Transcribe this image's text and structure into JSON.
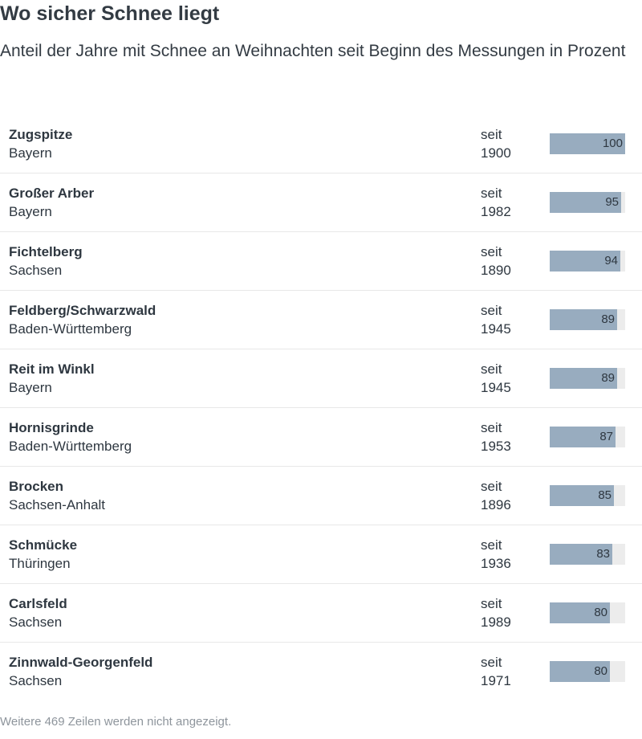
{
  "header": {
    "title": "Wo sicher Schnee liegt",
    "subtitle": "Anteil der Jahre mit Schnee an Weihnachten seit Beginn des Messungen in Prozent"
  },
  "colors": {
    "bar": "#98acbf",
    "track": "#ececec"
  },
  "chart_data": {
    "type": "table",
    "xlim": [
      0,
      100
    ],
    "rows": [
      {
        "station": "Zugspitze",
        "state": "Bayern",
        "since_prefix": "seit",
        "since_year": "1900",
        "value": 100
      },
      {
        "station": "Großer Arber",
        "state": "Bayern",
        "since_prefix": "seit",
        "since_year": "1982",
        "value": 95
      },
      {
        "station": "Fichtelberg",
        "state": "Sachsen",
        "since_prefix": "seit",
        "since_year": "1890",
        "value": 94
      },
      {
        "station": "Feldberg/Schwarzwald",
        "state": "Baden-Württemberg",
        "since_prefix": "seit",
        "since_year": "1945",
        "value": 89
      },
      {
        "station": "Reit im Winkl",
        "state": "Bayern",
        "since_prefix": "seit",
        "since_year": "1945",
        "value": 89
      },
      {
        "station": "Hornisgrinde",
        "state": "Baden-Württemberg",
        "since_prefix": "seit",
        "since_year": "1953",
        "value": 87
      },
      {
        "station": "Brocken",
        "state": "Sachsen-Anhalt",
        "since_prefix": "seit",
        "since_year": "1896",
        "value": 85
      },
      {
        "station": "Schmücke",
        "state": "Thüringen",
        "since_prefix": "seit",
        "since_year": "1936",
        "value": 83
      },
      {
        "station": "Carlsfeld",
        "state": "Sachsen",
        "since_prefix": "seit",
        "since_year": "1989",
        "value": 80
      },
      {
        "station": "Zinnwald-Georgenfeld",
        "state": "Sachsen",
        "since_prefix": "seit",
        "since_year": "1971",
        "value": 80
      }
    ]
  },
  "footer": {
    "note": "Weitere 469 Zeilen werden nicht angezeigt."
  }
}
